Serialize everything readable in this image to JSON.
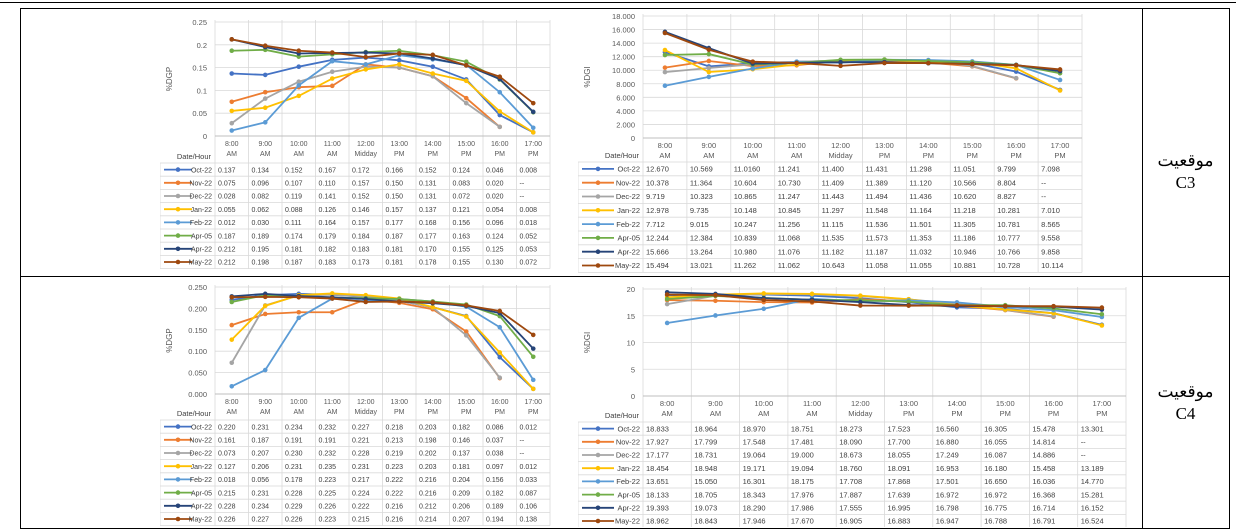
{
  "rows": [
    {
      "label_line1": "موقعيت",
      "label_line2": "C3"
    },
    {
      "label_line1": "موقعيت",
      "label_line2": "C4"
    }
  ],
  "colors": {
    "Oct-22": "#4472C4",
    "Nov-22": "#ED7D31",
    "Dec-22": "#A5A5A5",
    "Jan-22": "#FFC000",
    "Feb-22": "#5B9BD5",
    "Apr-05": "#70AD47",
    "Apr-22": "#264478",
    "May-22": "#9E480E"
  },
  "chart_data": [
    {
      "type": "line",
      "ylabel": "%DGP",
      "corner_label": "Date/Hour",
      "yticks": [
        "0",
        "0.05",
        "0.1",
        "0.15",
        "0.2",
        "0.25"
      ],
      "ylim": [
        0,
        0.25
      ],
      "categories": [
        [
          "8:00",
          "AM"
        ],
        [
          "9:00",
          "AM"
        ],
        [
          "10:00",
          "AM"
        ],
        [
          "11:00",
          "AM"
        ],
        [
          "12:00",
          "Midday"
        ],
        [
          "13:00",
          "PM"
        ],
        [
          "14:00",
          "PM"
        ],
        [
          "15:00",
          "PM"
        ],
        [
          "16:00",
          "PM"
        ],
        [
          "17:00",
          "PM"
        ]
      ],
      "series": [
        {
          "name": "Oct-22",
          "values": [
            "0.137",
            "0.134",
            "0.152",
            "0.167",
            "0.172",
            "0.166",
            "0.152",
            "0.124",
            "0.046",
            "0.008"
          ]
        },
        {
          "name": "Nov-22",
          "values": [
            "0.075",
            "0.096",
            "0.107",
            "0.110",
            "0.157",
            "0.150",
            "0.131",
            "0.083",
            "0.020",
            "--"
          ]
        },
        {
          "name": "Dec-22",
          "values": [
            "0.028",
            "0.082",
            "0.119",
            "0.141",
            "0.152",
            "0.150",
            "0.131",
            "0.072",
            "0.020",
            "--"
          ]
        },
        {
          "name": "Jan-22",
          "values": [
            "0.055",
            "0.062",
            "0.088",
            "0.126",
            "0.146",
            "0.157",
            "0.137",
            "0.121",
            "0.054",
            "0.008"
          ]
        },
        {
          "name": "Feb-22",
          "values": [
            "0.012",
            "0.030",
            "0.111",
            "0.164",
            "0.157",
            "0.177",
            "0.168",
            "0.156",
            "0.096",
            "0.018"
          ]
        },
        {
          "name": "Apr-05",
          "values": [
            "0.187",
            "0.189",
            "0.174",
            "0.179",
            "0.184",
            "0.187",
            "0.177",
            "0.163",
            "0.124",
            "0.052"
          ]
        },
        {
          "name": "Apr-22",
          "values": [
            "0.212",
            "0.195",
            "0.181",
            "0.182",
            "0.183",
            "0.181",
            "0.170",
            "0.155",
            "0.125",
            "0.053"
          ]
        },
        {
          "name": "May-22",
          "values": [
            "0.212",
            "0.198",
            "0.187",
            "0.183",
            "0.173",
            "0.181",
            "0.178",
            "0.155",
            "0.130",
            "0.072"
          ]
        }
      ]
    },
    {
      "type": "line",
      "ylabel": "%DGI",
      "corner_label": "Date/Hour",
      "yticks": [
        "0",
        "2.000",
        "4.000",
        "6.000",
        "8.000",
        "10.000",
        "12.000",
        "14.000",
        "16.000",
        "18.000"
      ],
      "ylim": [
        0,
        18
      ],
      "categories": [
        [
          "8:00",
          "AM"
        ],
        [
          "9:00",
          "AM"
        ],
        [
          "10:00",
          "AM"
        ],
        [
          "11:00",
          "AM"
        ],
        [
          "12:00",
          "Midday"
        ],
        [
          "13:00",
          "PM"
        ],
        [
          "14:00",
          "PM"
        ],
        [
          "15:00",
          "PM"
        ],
        [
          "16:00",
          "PM"
        ],
        [
          "17:00",
          "PM"
        ]
      ],
      "series": [
        {
          "name": "Oct-22",
          "values": [
            "12.670",
            "10.569",
            "11.0160",
            "11.241",
            "11.400",
            "11.431",
            "11.298",
            "11.051",
            "9.799",
            "7.098"
          ]
        },
        {
          "name": "Nov-22",
          "values": [
            "10.378",
            "11.364",
            "10.604",
            "10.730",
            "11.409",
            "11.389",
            "11.120",
            "10.566",
            "8.804",
            "--"
          ]
        },
        {
          "name": "Dec-22",
          "values": [
            "9.719",
            "10.323",
            "10.865",
            "11.247",
            "11.443",
            "11.494",
            "11.436",
            "10.620",
            "8.827",
            "--"
          ]
        },
        {
          "name": "Jan-22",
          "values": [
            "12.978",
            "9.735",
            "10.148",
            "10.845",
            "11.297",
            "11.548",
            "11.164",
            "11.218",
            "10.281",
            "7.010"
          ]
        },
        {
          "name": "Feb-22",
          "values": [
            "7.712",
            "9.015",
            "10.247",
            "11.256",
            "11.115",
            "11.536",
            "11.501",
            "11.305",
            "10.781",
            "8.565"
          ]
        },
        {
          "name": "Apr-05",
          "values": [
            "12.244",
            "12.384",
            "10.839",
            "11.068",
            "11.535",
            "11.573",
            "11.353",
            "11.186",
            "10.777",
            "9.558"
          ]
        },
        {
          "name": "Apr-22",
          "values": [
            "15.666",
            "13.264",
            "10.980",
            "11.076",
            "11.182",
            "11.187",
            "11.032",
            "10.946",
            "10.766",
            "9.858"
          ]
        },
        {
          "name": "May-22",
          "values": [
            "15.494",
            "13.021",
            "11.262",
            "11.062",
            "10.643",
            "11.058",
            "11.055",
            "10.881",
            "10.728",
            "10.114"
          ]
        }
      ]
    },
    {
      "type": "line",
      "ylabel": "%DGP",
      "corner_label": "Date/Hour",
      "yticks": [
        "0.000",
        "0.050",
        "0.100",
        "0.150",
        "0.200",
        "0.250"
      ],
      "ylim": [
        0,
        0.25
      ],
      "categories": [
        [
          "8:00",
          "AM"
        ],
        [
          "9:00",
          "AM"
        ],
        [
          "10:00",
          "AM"
        ],
        [
          "11:00",
          "AM"
        ],
        [
          "12:00",
          "Midday"
        ],
        [
          "13:00",
          "PM"
        ],
        [
          "14:00",
          "PM"
        ],
        [
          "15:00",
          "PM"
        ],
        [
          "16:00",
          "PM"
        ],
        [
          "17:00",
          "PM"
        ]
      ],
      "series": [
        {
          "name": "Oct-22",
          "values": [
            "0.220",
            "0.231",
            "0.234",
            "0.232",
            "0.227",
            "0.218",
            "0.203",
            "0.182",
            "0.086",
            "0.012"
          ]
        },
        {
          "name": "Nov-22",
          "values": [
            "0.161",
            "0.187",
            "0.191",
            "0.191",
            "0.221",
            "0.213",
            "0.198",
            "0.146",
            "0.037",
            "--"
          ]
        },
        {
          "name": "Dec-22",
          "values": [
            "0.073",
            "0.207",
            "0.230",
            "0.232",
            "0.228",
            "0.219",
            "0.202",
            "0.137",
            "0.038",
            "--"
          ]
        },
        {
          "name": "Jan-22",
          "values": [
            "0.127",
            "0.206",
            "0.231",
            "0.235",
            "0.231",
            "0.223",
            "0.203",
            "0.181",
            "0.097",
            "0.012"
          ]
        },
        {
          "name": "Feb-22",
          "values": [
            "0.018",
            "0.056",
            "0.178",
            "0.223",
            "0.217",
            "0.222",
            "0.216",
            "0.204",
            "0.156",
            "0.033"
          ]
        },
        {
          "name": "Apr-05",
          "values": [
            "0.215",
            "0.231",
            "0.228",
            "0.225",
            "0.224",
            "0.222",
            "0.216",
            "0.209",
            "0.182",
            "0.087"
          ]
        },
        {
          "name": "Apr-22",
          "values": [
            "0.228",
            "0.234",
            "0.229",
            "0.226",
            "0.222",
            "0.216",
            "0.212",
            "0.206",
            "0.189",
            "0.106"
          ]
        },
        {
          "name": "May-22",
          "values": [
            "0.226",
            "0.227",
            "0.226",
            "0.223",
            "0.215",
            "0.216",
            "0.214",
            "0.207",
            "0.194",
            "0.138"
          ]
        }
      ]
    },
    {
      "type": "line",
      "ylabel": "%DGI",
      "corner_label": "Date/Hour",
      "yticks": [
        "0",
        "5",
        "10",
        "15",
        "20"
      ],
      "ylim": [
        0,
        20
      ],
      "categories": [
        [
          "8:00",
          "AM"
        ],
        [
          "9:00",
          "AM"
        ],
        [
          "10:00",
          "AM"
        ],
        [
          "11:00",
          "AM"
        ],
        [
          "12:00",
          "Midday"
        ],
        [
          "13:00",
          "PM"
        ],
        [
          "14:00",
          "PM"
        ],
        [
          "15:00",
          "PM"
        ],
        [
          "16:00",
          "PM"
        ],
        [
          "17:00",
          "PM"
        ]
      ],
      "series": [
        {
          "name": "Oct-22",
          "values": [
            "18.833",
            "18.964",
            "18.970",
            "18.751",
            "18.273",
            "17.523",
            "16.560",
            "16.305",
            "15.478",
            "13.301"
          ]
        },
        {
          "name": "Nov-22",
          "values": [
            "17.927",
            "17.799",
            "17.548",
            "17.481",
            "18.090",
            "17.700",
            "16.880",
            "16.055",
            "14.814",
            "--"
          ]
        },
        {
          "name": "Dec-22",
          "values": [
            "17.177",
            "18.731",
            "19.064",
            "19.000",
            "18.673",
            "18.055",
            "17.249",
            "16.087",
            "14.886",
            "--"
          ]
        },
        {
          "name": "Jan-22",
          "values": [
            "18.454",
            "18.948",
            "19.171",
            "19.094",
            "18.760",
            "18.091",
            "16.953",
            "16.180",
            "15.458",
            "13.189"
          ]
        },
        {
          "name": "Feb-22",
          "values": [
            "13.651",
            "15.050",
            "16.301",
            "18.175",
            "17.708",
            "17.868",
            "17.501",
            "16.650",
            "16.036",
            "14.770"
          ]
        },
        {
          "name": "Apr-05",
          "values": [
            "18.133",
            "18.705",
            "18.343",
            "17.976",
            "17.887",
            "17.639",
            "16.972",
            "16.972",
            "16.368",
            "15.281"
          ]
        },
        {
          "name": "Apr-22",
          "values": [
            "19.393",
            "19.073",
            "18.290",
            "17.986",
            "17.555",
            "16.995",
            "16.798",
            "16.775",
            "16.714",
            "16.152"
          ]
        },
        {
          "name": "May-22",
          "values": [
            "18.962",
            "18.843",
            "17.946",
            "17.670",
            "16.905",
            "16.883",
            "16.947",
            "16.788",
            "16.791",
            "16.524"
          ]
        }
      ]
    }
  ]
}
